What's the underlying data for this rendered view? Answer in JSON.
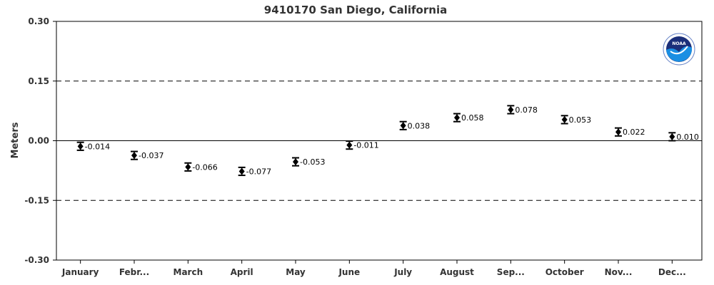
{
  "chart_data": {
    "type": "scatter",
    "title": "9410170 San Diego, California",
    "ylabel": "Meters",
    "xlabel": "",
    "ylim": [
      -0.3,
      0.3
    ],
    "yticks": [
      "0.30",
      "0.15",
      "0.00",
      "-0.15",
      "-0.30"
    ],
    "ytick_values": [
      0.3,
      0.15,
      0.0,
      -0.15,
      -0.3
    ],
    "dashed_reference_lines": [
      0.15,
      -0.15
    ],
    "solid_reference_line": 0.0,
    "grid": false,
    "categories": [
      "January",
      "Febr...",
      "March",
      "April",
      "May",
      "June",
      "July",
      "August",
      "Sep...",
      "October",
      "Nov...",
      "Dec..."
    ],
    "values": [
      -0.014,
      -0.037,
      -0.066,
      -0.077,
      -0.053,
      -0.011,
      0.038,
      0.058,
      0.078,
      0.053,
      0.022,
      0.01
    ],
    "value_labels": [
      "-0.014",
      "-0.037",
      "-0.066",
      "-0.077",
      "-0.053",
      "-0.011",
      "0.038",
      "0.058",
      "0.078",
      "0.053",
      "0.022",
      "0.010"
    ],
    "error_half_width": 0.01,
    "logo": {
      "name": "noaa-logo",
      "text": "NOAA",
      "colors": {
        "top": "#1b2f7a",
        "bottom": "#1a8fe3",
        "ring": "#ffffff"
      }
    },
    "colors": {
      "marker": "#000000",
      "axis": "#000000",
      "text": "#333333"
    }
  }
}
